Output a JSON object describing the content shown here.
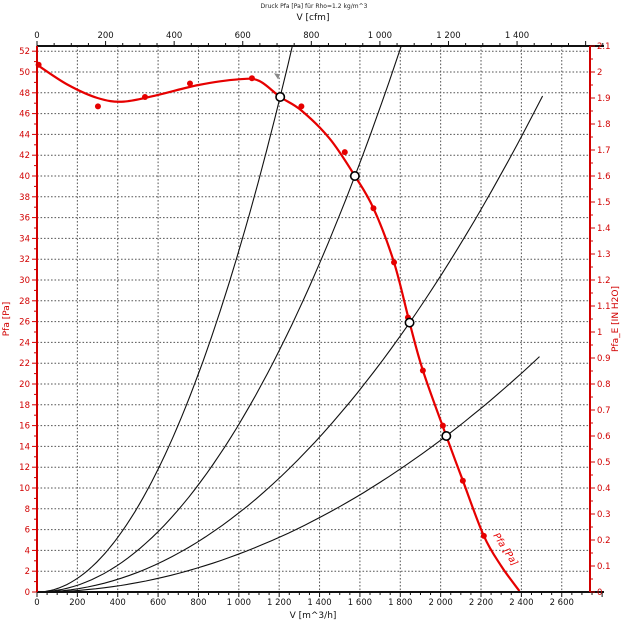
{
  "chart_data": {
    "type": "line",
    "title": "Druck Pfa [Pa] für Rho=1.2 kg/m^3",
    "axes": {
      "bottom": {
        "label": "V [m^3/h]",
        "min": 0,
        "max": 2740,
        "tick_step": 200,
        "minor_step": 50,
        "labeled_to": 2600,
        "tick_labels": [
          "0",
          "200",
          "400",
          "600",
          "800",
          "1 000",
          "1 200",
          "1 400",
          "1 600",
          "1 800",
          "2 000",
          "2 200",
          "2 400",
          "2 600"
        ]
      },
      "top": {
        "label": "V [cfm]",
        "min": 0,
        "max": 1612,
        "tick_step": 200,
        "minor_step": 50,
        "labeled_to": 1400,
        "m3h_per_cfm": 1.699,
        "tick_labels": [
          "0",
          "200",
          "400",
          "600",
          "800",
          "1 000",
          "1 200",
          "1 400"
        ]
      },
      "left": {
        "label": "Pfa [Pa]",
        "min": 0,
        "max": 52.5,
        "tick_step": 2,
        "minor_step": 1,
        "labeled_to": 52
      },
      "right": {
        "label": "Pfa_E [IN H2O]",
        "min": 0,
        "max": 2.1,
        "tick_step": 0.1,
        "minor_step": 0.05,
        "pa_per_unit": 25
      }
    },
    "colors": {
      "axis_red": "#d10000",
      "curve_red": "#e60000",
      "black": "#111111",
      "grid": "#565656",
      "marker_gray": "#8a8a8a"
    },
    "grid": {
      "vertical_every_m3h": 200,
      "horizontal_every_pa": 2,
      "dashed": true
    },
    "fan_curve": {
      "name": "fan pressure curve Pfa(V)",
      "points": [
        [
          0,
          50.7
        ],
        [
          150,
          48.8
        ],
        [
          300,
          47.5
        ],
        [
          430,
          47.15
        ],
        [
          600,
          47.8
        ],
        [
          800,
          48.75
        ],
        [
          1000,
          49.3
        ],
        [
          1100,
          49.15
        ],
        [
          1205,
          47.6
        ],
        [
          1310,
          46.3
        ],
        [
          1450,
          43.6
        ],
        [
          1575,
          40.0
        ],
        [
          1667,
          36.9
        ],
        [
          1769,
          31.7
        ],
        [
          1846,
          25.9
        ],
        [
          1912,
          21.3
        ],
        [
          2028,
          15.0
        ],
        [
          2110,
          10.7
        ],
        [
          2214,
          5.4
        ],
        [
          2300,
          2.5
        ],
        [
          2390,
          0.1
        ]
      ]
    },
    "measured_points": [
      [
        8,
        50.7
      ],
      [
        302,
        46.7
      ],
      [
        535,
        47.6
      ],
      [
        758,
        48.9
      ],
      [
        1065,
        49.4
      ],
      [
        1310,
        46.7
      ],
      [
        1525,
        42.3
      ],
      [
        1667,
        36.9
      ],
      [
        1769,
        31.7
      ],
      [
        1838,
        26.4
      ],
      [
        1912,
        21.3
      ],
      [
        2011,
        16.0
      ],
      [
        2110,
        10.7
      ],
      [
        2214,
        5.4
      ]
    ],
    "system_curves": [
      {
        "name": "system resistance curve 1",
        "k": 3.28e-05,
        "v_end": 1265
      },
      {
        "name": "system resistance curve 2",
        "k": 1.612e-05,
        "v_end": 1804
      },
      {
        "name": "system resistance curve 3",
        "k": 7.6e-06,
        "v_end": 2505
      },
      {
        "name": "system resistance curve 4",
        "k": 3.65e-06,
        "v_end": 2490
      }
    ],
    "operating_points": [
      [
        1205,
        47.6
      ],
      [
        1575,
        40.0
      ],
      [
        1846,
        25.9
      ],
      [
        2028,
        15.0
      ]
    ],
    "marker_flag": {
      "v": 1189,
      "p": 49.3
    },
    "curve_label": "Pfa [Pa]"
  }
}
